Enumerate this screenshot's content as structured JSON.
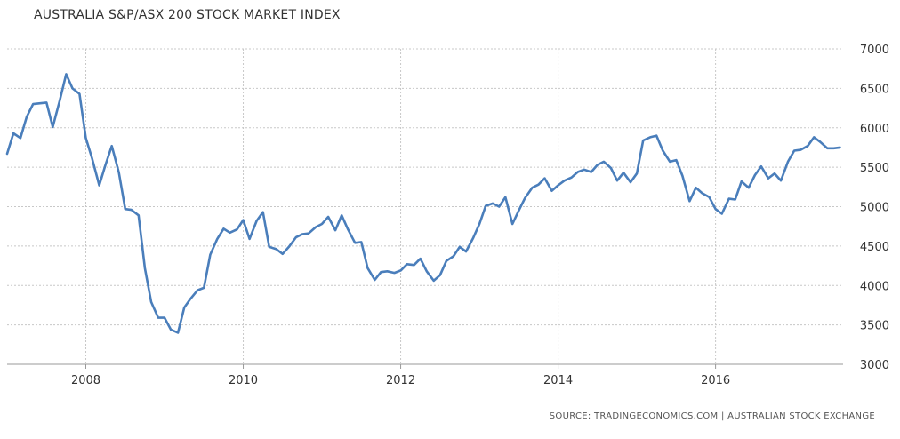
{
  "chart_data": {
    "type": "line",
    "title": "AUSTRALIA S&P/ASX 200 STOCK MARKET INDEX",
    "xlabel": "",
    "ylabel": "",
    "source": "SOURCE: TRADINGECONOMICS.COM | AUSTRALIAN STOCK EXCHANGE",
    "ylim": [
      3000,
      7000
    ],
    "yticks": [
      "3000",
      "3500",
      "4000",
      "4500",
      "5000",
      "5500",
      "6000",
      "6500",
      "7000"
    ],
    "xticks": [
      "2008",
      "2010",
      "2012",
      "2014",
      "2016"
    ],
    "grid": true,
    "y_axis_side": "right",
    "line_color": "#4a7ebb",
    "series": [
      {
        "x": [
          2007.0,
          2007.08,
          2007.17,
          2007.25,
          2007.33,
          2007.42,
          2007.5,
          2007.58,
          2007.67,
          2007.75,
          2007.83,
          2007.92,
          2008.0,
          2008.08,
          2008.17,
          2008.25,
          2008.33,
          2008.42,
          2008.5,
          2008.58,
          2008.67,
          2008.75,
          2008.83,
          2008.92,
          2009.0,
          2009.08,
          2009.17,
          2009.25,
          2009.33,
          2009.42,
          2009.5,
          2009.58,
          2009.67,
          2009.75,
          2009.83,
          2009.92,
          2010.0,
          2010.08,
          2010.17,
          2010.25,
          2010.33,
          2010.42,
          2010.5,
          2010.58,
          2010.67,
          2010.75,
          2010.83,
          2010.92,
          2011.0,
          2011.08,
          2011.17,
          2011.25,
          2011.33,
          2011.42,
          2011.5,
          2011.58,
          2011.67,
          2011.75,
          2011.83,
          2011.92,
          2012.0,
          2012.08,
          2012.17,
          2012.25,
          2012.33,
          2012.42,
          2012.5,
          2012.58,
          2012.67,
          2012.75,
          2012.83,
          2012.92,
          2013.0,
          2013.08,
          2013.17,
          2013.25,
          2013.33,
          2013.42,
          2013.5,
          2013.58,
          2013.67,
          2013.75,
          2013.83,
          2013.92,
          2014.0,
          2014.08,
          2014.17,
          2014.25,
          2014.33,
          2014.42,
          2014.5,
          2014.58,
          2014.67,
          2014.75,
          2014.83,
          2014.92,
          2015.0,
          2015.08,
          2015.17,
          2015.25,
          2015.33,
          2015.42,
          2015.5,
          2015.58,
          2015.67,
          2015.75,
          2015.83,
          2015.92,
          2016.0,
          2016.08,
          2016.17,
          2016.25,
          2016.33,
          2016.42,
          2016.5,
          2016.58,
          2016.67,
          2016.75,
          2016.83,
          2016.92,
          2017.0,
          2017.08,
          2017.17,
          2017.25,
          2017.33,
          2017.42,
          2017.5,
          2017.58
        ],
        "values": [
          5670,
          5930,
          5870,
          6140,
          6300,
          6310,
          6320,
          6010,
          6350,
          6680,
          6500,
          6430,
          5870,
          5610,
          5270,
          5530,
          5770,
          5430,
          4970,
          4960,
          4890,
          4220,
          3790,
          3590,
          3590,
          3440,
          3400,
          3720,
          3830,
          3940,
          3970,
          4390,
          4590,
          4720,
          4670,
          4710,
          4830,
          4590,
          4820,
          4930,
          4490,
          4460,
          4400,
          4490,
          4610,
          4650,
          4660,
          4740,
          4780,
          4870,
          4700,
          4890,
          4710,
          4540,
          4550,
          4220,
          4070,
          4170,
          4180,
          4160,
          4190,
          4270,
          4260,
          4340,
          4180,
          4060,
          4130,
          4310,
          4370,
          4490,
          4430,
          4600,
          4780,
          5010,
          5040,
          5000,
          5120,
          4780,
          4950,
          5110,
          5240,
          5280,
          5360,
          5200,
          5270,
          5330,
          5370,
          5440,
          5470,
          5440,
          5530,
          5570,
          5490,
          5330,
          5430,
          5310,
          5420,
          5840,
          5880,
          5900,
          5710,
          5570,
          5590,
          5390,
          5070,
          5240,
          5170,
          5120,
          4970,
          4910,
          5100,
          5090,
          5320,
          5240,
          5400,
          5510,
          5360,
          5420,
          5330,
          5570,
          5710,
          5720,
          5770,
          5880,
          5820,
          5740,
          5740,
          5750
        ]
      }
    ]
  }
}
